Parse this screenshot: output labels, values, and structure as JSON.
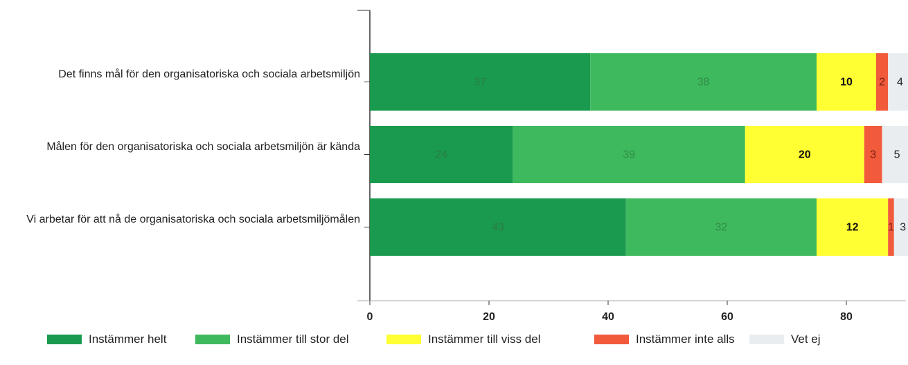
{
  "chart_data": {
    "type": "stacked-bar-horizontal",
    "categories": [
      "Det finns mål för den organisatoriska och sociala arbetsmiljön",
      "Målen för den organisatoriska och sociala arbetsmiljön är kända",
      "Vi arbetar för att nå de organisatoriska och sociala arbetsmiljömålen"
    ],
    "series": [
      {
        "name": "Instämmer helt",
        "color": "#1a9a4e",
        "values": [
          37,
          24,
          43
        ]
      },
      {
        "name": "Instämmer till stor del",
        "color": "#3fb95e",
        "values": [
          38,
          39,
          32
        ]
      },
      {
        "name": "Instämmer till viss del",
        "color": "#ffff33",
        "values": [
          10,
          20,
          12
        ]
      },
      {
        "name": "Instämmer inte alls",
        "color": "#f15a3b",
        "values": [
          2,
          3,
          1
        ]
      },
      {
        "name": "Vet ej",
        "color": "#e9edf0",
        "values": [
          4,
          5,
          3
        ]
      }
    ],
    "xlim": [
      0,
      90
    ],
    "xticks": [
      0,
      20,
      40,
      60,
      80
    ]
  }
}
